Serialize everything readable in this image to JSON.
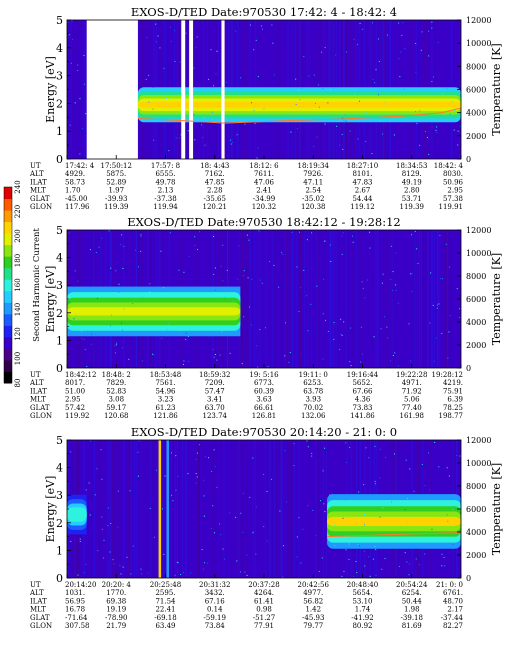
{
  "chart_data": [
    {
      "type": "heatmap",
      "title": "EXOS-D/TED   Date:970530  17:42: 4 - 18:42: 4",
      "ylabel": "Energy [eV]",
      "y2label": "Temperature [K]",
      "yticks": [
        "0",
        "1",
        "2",
        "3",
        "4",
        "5"
      ],
      "ylim": [
        0,
        5
      ],
      "y2ticks": [
        "0",
        "2000",
        "4000",
        "6000",
        "8000",
        "10000",
        "12000"
      ],
      "y2lim": [
        0,
        12000
      ],
      "background_level": 3,
      "data_gaps": [
        [
          0.05,
          0.18
        ],
        [
          0.29,
          0.3
        ],
        [
          0.31,
          0.32
        ],
        [
          0.392,
          0.4
        ]
      ],
      "band": {
        "x_range": [
          0.18,
          1.0
        ],
        "center_ev": 1.95,
        "half_width_ev": 0.35,
        "level": 12,
        "core_level": 13
      },
      "temperature_trace_k": [
        [
          0.18,
          3500
        ],
        [
          0.3,
          3300
        ],
        [
          0.4,
          3100
        ],
        [
          0.55,
          3300
        ],
        [
          0.7,
          3450
        ],
        [
          0.85,
          3700
        ],
        [
          0.95,
          4000
        ],
        [
          1.0,
          4400
        ]
      ],
      "orbit_labels": [
        "UT",
        "ALT",
        "ILAT",
        "MLT",
        "GLAT",
        "GLON"
      ],
      "orbit_columns": [
        [
          "17:42: 4",
          "4929.",
          "58.73",
          "1.70",
          "-45.00",
          "117.96"
        ],
        [
          "17:50:12",
          "5875.",
          "52.89",
          "1.97",
          "-39.93",
          "119.39"
        ],
        [
          "17:57: 8",
          "6555.",
          "49.78",
          "2.13",
          "-37.38",
          "119.94"
        ],
        [
          "18: 4:43",
          "7162.",
          "47.85",
          "2.28",
          "-35.65",
          "120.21"
        ],
        [
          "18:12: 6",
          "7611.",
          "47.06",
          "2.41",
          "-34.99",
          "120.32"
        ],
        [
          "18:19:34",
          "7926.",
          "47.11",
          "2.54",
          "-35.02",
          "120.38"
        ],
        [
          "18:27:10",
          "8101.",
          "47.83",
          "2.67",
          "54.44",
          "119.12"
        ],
        [
          "18:34:53",
          "8129.",
          "49.19",
          "2.80",
          "53.71",
          "119.39"
        ],
        [
          "18:42: 4",
          "8030.",
          "50.96",
          "2.95",
          "57.38",
          "119.91"
        ]
      ]
    },
    {
      "type": "heatmap",
      "title": "EXOS-D/TED   Date:970530  18:42:12 - 19:28:12",
      "ylabel": "Energy [eV]",
      "y2label": "Temperature [K]",
      "yticks": [
        "0",
        "1",
        "2",
        "3",
        "4",
        "5"
      ],
      "ylim": [
        0,
        5
      ],
      "y2ticks": [
        "0",
        "2000",
        "4000",
        "6000",
        "8000",
        "10000",
        "12000"
      ],
      "y2lim": [
        0,
        12000
      ],
      "background_level": 3,
      "data_gaps": [],
      "band": {
        "x_range": [
          0.0,
          0.44
        ],
        "center_ev": 2.05,
        "half_width_ev": 0.5,
        "level": 11,
        "core_level": 12
      },
      "temperature_trace_k": [],
      "orbit_labels": [
        "UT",
        "ALT",
        "ILAT",
        "MLT",
        "GLAT",
        "GLON"
      ],
      "orbit_columns": [
        [
          "18:42:12",
          "8017.",
          "51.00",
          "2.95",
          "57.42",
          "119.92"
        ],
        [
          "18:48: 2",
          "7829.",
          "52.83",
          "3.08",
          "59.17",
          "120.68"
        ],
        [
          "18:53:48",
          "7561.",
          "54.96",
          "3.23",
          "61.23",
          "121.86"
        ],
        [
          "18:59:32",
          "7209.",
          "57.47",
          "3.41",
          "63.70",
          "123.74"
        ],
        [
          "19: 5:16",
          "6773.",
          "60.39",
          "3.63",
          "66.61",
          "126.81"
        ],
        [
          "19:11: 0",
          "6253.",
          "63.78",
          "3.93",
          "70.02",
          "132.06"
        ],
        [
          "19:16:44",
          "5652.",
          "67.66",
          "4.36",
          "73.83",
          "141.86"
        ],
        [
          "19:22:28",
          "4971.",
          "71.92",
          "5.06",
          "77.40",
          "161.98"
        ],
        [
          "19:28:12",
          "4219.",
          "75.91",
          "6.39",
          "78.25",
          "198.77"
        ]
      ]
    },
    {
      "type": "heatmap",
      "title": "EXOS-D/TED   Date:970530  20:14:20 - 21: 0: 0",
      "ylabel": "Energy [eV]",
      "y2label": "Temperature [K]",
      "yticks": [
        "0",
        "1",
        "2",
        "3",
        "4",
        "5"
      ],
      "ylim": [
        0,
        5
      ],
      "y2ticks": [
        "0",
        "2000",
        "4000",
        "6000",
        "8000",
        "10000",
        "12000"
      ],
      "y2lim": [
        0,
        12000
      ],
      "background_level": 3,
      "data_gaps": [],
      "band": {
        "x_range": [
          0.66,
          1.0
        ],
        "center_ev": 2.05,
        "half_width_ev": 0.55,
        "level": 11,
        "core_level": 13
      },
      "extra_band": {
        "x_range": [
          0.0,
          0.05
        ],
        "center_ev": 2.3,
        "half_width_ev": 0.4,
        "level": 8
      },
      "vertical_streaks": [
        {
          "x": 0.235,
          "level": 13
        },
        {
          "x": 0.255,
          "level": 6
        }
      ],
      "temperature_trace_k": [
        [
          0.66,
          3600
        ],
        [
          0.75,
          3700
        ],
        [
          0.85,
          3800
        ],
        [
          0.95,
          3900
        ],
        [
          1.0,
          3950
        ]
      ],
      "orbit_labels": [
        "UT",
        "ALT",
        "ILAT",
        "MLT",
        "GLAT",
        "GLON"
      ],
      "orbit_columns": [
        [
          "20:14:20",
          "1031.",
          "56.95",
          "16.78",
          "-71.64",
          "307.58"
        ],
        [
          "20:20: 4",
          "1770.",
          "69.38",
          "19.19",
          "-78.90",
          "21.79"
        ],
        [
          "20:25:48",
          "2595.",
          "71.54",
          "22.41",
          "-69.18",
          "63.49"
        ],
        [
          "20:31:32",
          "3432.",
          "67.16",
          "0.14",
          "-59.19",
          "73.84"
        ],
        [
          "20:37:28",
          "4264.",
          "61.41",
          "0.98",
          "-51.27",
          "77.91"
        ],
        [
          "20:42:56",
          "4977.",
          "56.82",
          "1.42",
          "-45.93",
          "79.77"
        ],
        [
          "20:48:40",
          "5654.",
          "53.10",
          "1.74",
          "-41.92",
          "80.92"
        ],
        [
          "20:54:24",
          "6254.",
          "50.44",
          "1.98",
          "-39.18",
          "81.69"
        ],
        [
          "21: 0: 0",
          "6761.",
          "48.70",
          "2.17",
          "-37.44",
          "82.27"
        ]
      ]
    }
  ],
  "colorbar": {
    "label": "Second Harmonic Current",
    "ticks": [
      "80",
      "100",
      "120",
      "140",
      "160",
      "180",
      "200",
      "220",
      "240"
    ],
    "range": [
      80,
      240
    ],
    "colors": [
      "#000000",
      "#2e004a",
      "#4b0088",
      "#3a00c8",
      "#1f20f2",
      "#1a5cff",
      "#1f9bff",
      "#24ccff",
      "#2ef2e0",
      "#22e08a",
      "#30d020",
      "#8ae610",
      "#e0f000",
      "#ffd200",
      "#ff9a00",
      "#ff5a00",
      "#e00000"
    ]
  }
}
